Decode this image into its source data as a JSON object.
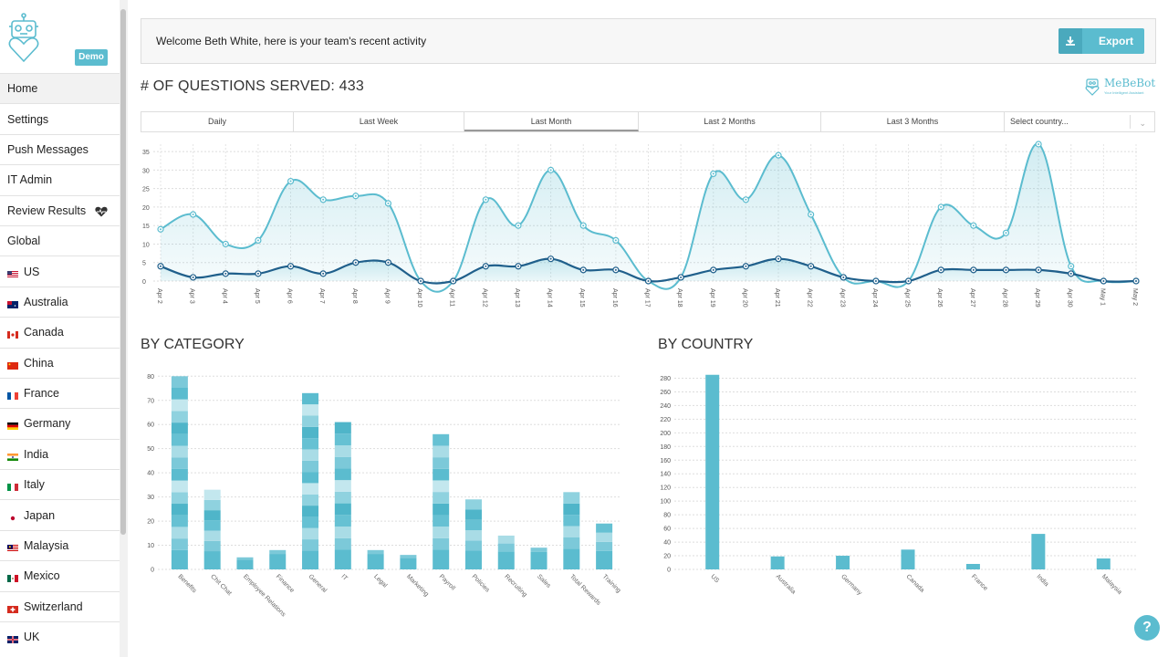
{
  "sidebar": {
    "badge": "Demo",
    "items": [
      {
        "label": "Home",
        "active": true
      },
      {
        "label": "Settings"
      },
      {
        "label": "Push Messages"
      },
      {
        "label": "IT Admin"
      },
      {
        "label": "Review Results",
        "icon": "heart-pulse-icon"
      },
      {
        "label": "Global"
      }
    ],
    "countries": [
      {
        "label": "US",
        "icon": "us-flag-icon"
      },
      {
        "label": "Australia",
        "icon": "australia-flag-icon"
      },
      {
        "label": "Canada",
        "icon": "canada-flag-icon"
      },
      {
        "label": "China",
        "icon": "china-flag-icon"
      },
      {
        "label": "France",
        "icon": "france-flag-icon"
      },
      {
        "label": "Germany",
        "icon": "germany-flag-icon"
      },
      {
        "label": "India",
        "icon": "india-flag-icon"
      },
      {
        "label": "Italy",
        "icon": "italy-flag-icon"
      },
      {
        "label": "Japan",
        "icon": "japan-flag-icon"
      },
      {
        "label": "Malaysia",
        "icon": "malaysia-flag-icon"
      },
      {
        "label": "Mexico",
        "icon": "mexico-flag-icon"
      },
      {
        "label": "Switzerland",
        "icon": "switzerland-flag-icon"
      },
      {
        "label": "UK",
        "icon": "uk-flag-icon"
      }
    ]
  },
  "header": {
    "welcome": "Welcome Beth White, here is your team's recent activity",
    "export_label": "Export",
    "title": "# OF QUESTIONS SERVED: 433",
    "brand_name": "MeBeBot",
    "brand_tagline": "Your Intelligent Assistant"
  },
  "tabs": {
    "items": [
      "Daily",
      "Last Week",
      "Last Month",
      "Last 2 Months",
      "Last 3 Months"
    ],
    "active": "Last Month",
    "country_placeholder": "Select country..."
  },
  "colors": {
    "accent": "#5bbccf",
    "dark_series": "#1f5f8b",
    "light_series": "#5bbccf"
  },
  "sections": {
    "category": "BY CATEGORY",
    "country": "BY COUNTRY"
  },
  "help_label": "?",
  "chart_data": [
    {
      "type": "area",
      "x": [
        "Apr 2",
        "Apr 3",
        "Apr 4",
        "Apr 5",
        "Apr 6",
        "Apr 7",
        "Apr 8",
        "Apr 9",
        "Apr 10",
        "Apr 11",
        "Apr 12",
        "Apr 13",
        "Apr 14",
        "Apr 15",
        "Apr 16",
        "Apr 17",
        "Apr 18",
        "Apr 19",
        "Apr 20",
        "Apr 21",
        "Apr 22",
        "Apr 23",
        "Apr 24",
        "Apr 25",
        "Apr 26",
        "Apr 27",
        "Apr 28",
        "Apr 29",
        "Apr 30",
        "May 1",
        "May 2"
      ],
      "series": [
        {
          "values": [
            14,
            18,
            10,
            11,
            27,
            22,
            23,
            21,
            0,
            0,
            22,
            15,
            30,
            15,
            11,
            0,
            1,
            29,
            22,
            34,
            18,
            1,
            0,
            0,
            20,
            15,
            13,
            37,
            4,
            0,
            0
          ]
        },
        {
          "values": [
            4,
            1,
            2,
            2,
            4,
            2,
            5,
            5,
            0,
            0,
            4,
            4,
            6,
            3,
            3,
            0,
            1,
            3,
            4,
            6,
            4,
            1,
            0,
            0,
            3,
            3,
            3,
            3,
            2,
            0,
            0
          ]
        }
      ],
      "ylim": [
        0,
        37
      ],
      "yticks": [
        0,
        5,
        10,
        15,
        20,
        25,
        30,
        35
      ],
      "grid": true
    },
    {
      "type": "bar",
      "categories": [
        "Benefits",
        "Chit Chat",
        "Employee Relations",
        "Finance",
        "General",
        "IT",
        "Legal",
        "Marketing",
        "Payroll",
        "Policies",
        "Recruiting",
        "Sales",
        "Total Rewards",
        "Training"
      ],
      "values": [
        80,
        33,
        5,
        8,
        73,
        61,
        8,
        6,
        56,
        29,
        14,
        9,
        32,
        19
      ],
      "ylim": [
        0,
        82
      ],
      "yticks": [
        0,
        10,
        20,
        30,
        40,
        50,
        60,
        70,
        80
      ],
      "stacked": true,
      "grid": true
    },
    {
      "type": "bar",
      "categories": [
        "US",
        "Australia",
        "Germany",
        "Canada",
        "France",
        "India",
        "Malaysia"
      ],
      "values": [
        285,
        19,
        20,
        29,
        8,
        52,
        16
      ],
      "ylim": [
        0,
        290
      ],
      "yticks": [
        0,
        20,
        40,
        60,
        80,
        100,
        120,
        140,
        160,
        180,
        200,
        220,
        240,
        260,
        280
      ],
      "grid": true
    }
  ]
}
